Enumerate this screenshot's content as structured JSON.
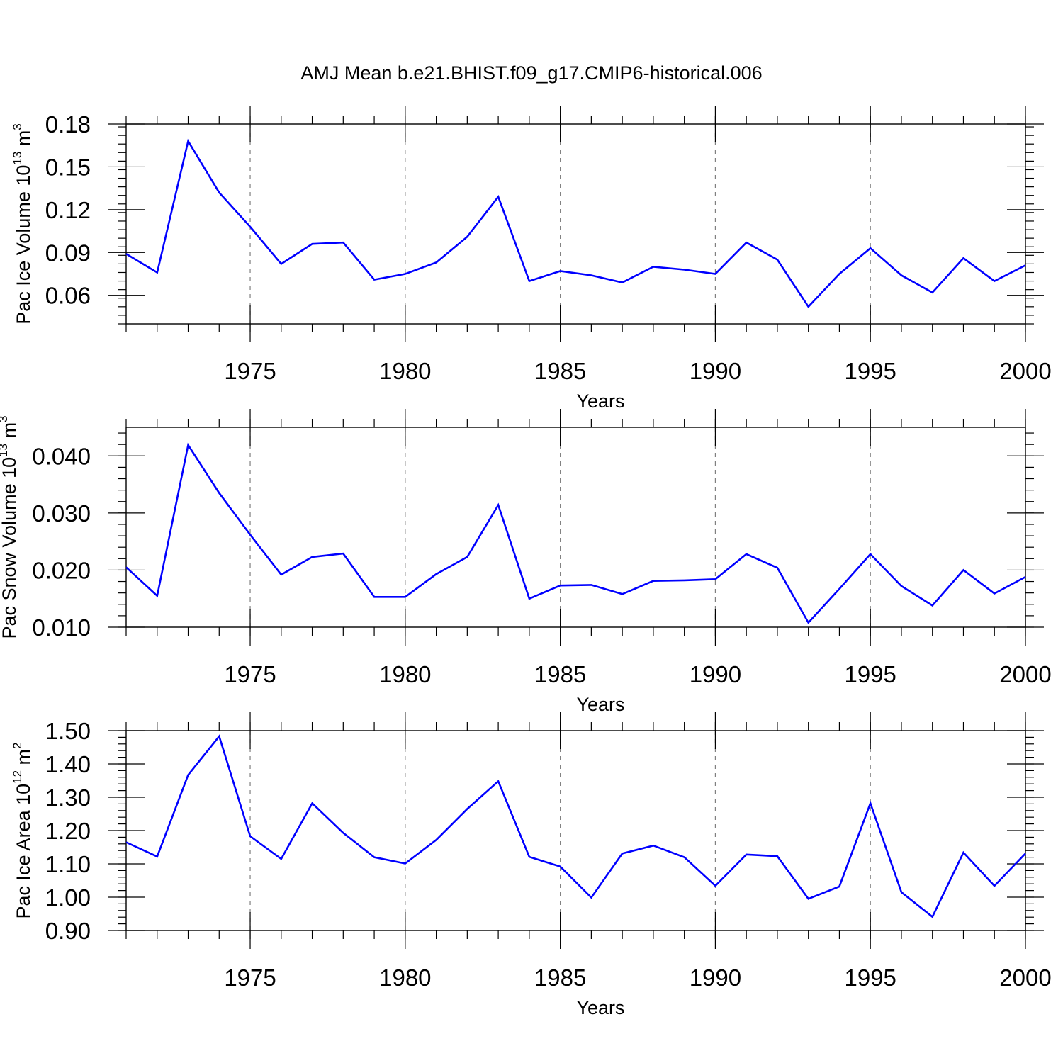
{
  "figure_title": "AMJ Mean b.e21.BHIST.f09_g17.CMIP6-historical.006",
  "colors": {
    "line": "#0000ff",
    "axis": "#000000",
    "grid": "#808080"
  },
  "chart_data": [
    {
      "type": "line",
      "series": [
        {
          "name": "Pac Ice Volume",
          "values": [
            0.089,
            0.076,
            0.168,
            0.132,
            0.108,
            0.082,
            0.096,
            0.097,
            0.071,
            0.075,
            0.083,
            0.101,
            0.129,
            0.07,
            0.077,
            0.074,
            0.069,
            0.08,
            0.078,
            0.075,
            0.097,
            0.085,
            0.052,
            0.075,
            0.093,
            0.074,
            0.062,
            0.086,
            0.07,
            0.081
          ]
        }
      ],
      "x": [
        1971,
        1972,
        1973,
        1974,
        1975,
        1976,
        1977,
        1978,
        1979,
        1980,
        1981,
        1982,
        1983,
        1984,
        1985,
        1986,
        1987,
        1988,
        1989,
        1990,
        1991,
        1992,
        1993,
        1994,
        1995,
        1996,
        1997,
        1998,
        1999,
        2000
      ],
      "xlim": [
        1971,
        2000
      ],
      "ylim": [
        0.04,
        0.18
      ],
      "xticks": [
        "1975",
        "1980",
        "1985",
        "1990",
        "1995",
        "2000"
      ],
      "yticks": [
        "0.06",
        "0.09",
        "0.12",
        "0.15",
        "0.18"
      ],
      "xlabel": "Years",
      "ylabel": {
        "text": "Pac Ice Volume 10",
        "exponent": "13",
        "unit": " m",
        "unit_exponent": "3"
      },
      "grid": "vertical dashed at major x ticks"
    },
    {
      "type": "line",
      "series": [
        {
          "name": "Pac Snow Volume",
          "values": [
            0.0205,
            0.0155,
            0.0419,
            0.0335,
            0.0262,
            0.0192,
            0.0223,
            0.0229,
            0.0153,
            0.0153,
            0.0193,
            0.0223,
            0.0314,
            0.015,
            0.0173,
            0.0174,
            0.0158,
            0.0181,
            0.0182,
            0.0184,
            0.0228,
            0.0204,
            0.0108,
            0.0167,
            0.0228,
            0.0172,
            0.0138,
            0.02,
            0.0159,
            0.0188
          ]
        }
      ],
      "x": [
        1971,
        1972,
        1973,
        1974,
        1975,
        1976,
        1977,
        1978,
        1979,
        1980,
        1981,
        1982,
        1983,
        1984,
        1985,
        1986,
        1987,
        1988,
        1989,
        1990,
        1991,
        1992,
        1993,
        1994,
        1995,
        1996,
        1997,
        1998,
        1999,
        2000
      ],
      "xlim": [
        1971,
        2000
      ],
      "ylim": [
        0.01,
        0.045
      ],
      "xticks": [
        "1975",
        "1980",
        "1985",
        "1990",
        "1995",
        "2000"
      ],
      "yticks": [
        "0.010",
        "0.020",
        "0.030",
        "0.040"
      ],
      "xlabel": "Years",
      "ylabel": {
        "text": "Pac Snow Volume 10",
        "exponent": "13",
        "unit": " m",
        "unit_exponent": "3"
      },
      "grid": "vertical dashed at major x ticks"
    },
    {
      "type": "line",
      "series": [
        {
          "name": "Pac Ice Area",
          "values": [
            1.165,
            1.122,
            1.367,
            1.483,
            1.183,
            1.115,
            1.282,
            1.193,
            1.12,
            1.101,
            1.172,
            1.265,
            1.348,
            1.121,
            1.092,
            0.999,
            1.131,
            1.155,
            1.12,
            1.034,
            1.128,
            1.123,
            0.995,
            1.032,
            1.282,
            1.015,
            0.941,
            1.134,
            1.034,
            1.131
          ]
        }
      ],
      "x": [
        1971,
        1972,
        1973,
        1974,
        1975,
        1976,
        1977,
        1978,
        1979,
        1980,
        1981,
        1982,
        1983,
        1984,
        1985,
        1986,
        1987,
        1988,
        1989,
        1990,
        1991,
        1992,
        1993,
        1994,
        1995,
        1996,
        1997,
        1998,
        1999,
        2000
      ],
      "xlim": [
        1971,
        2000
      ],
      "ylim": [
        0.9,
        1.5
      ],
      "xticks": [
        "1975",
        "1980",
        "1985",
        "1990",
        "1995",
        "2000"
      ],
      "yticks": [
        "0.90",
        "1.00",
        "1.10",
        "1.20",
        "1.30",
        "1.40",
        "1.50"
      ],
      "xlabel": "Years",
      "ylabel": {
        "text": "Pac Ice Area 10",
        "exponent": "12",
        "unit": " m",
        "unit_exponent": "2"
      },
      "grid": "vertical dashed at major x ticks"
    }
  ]
}
